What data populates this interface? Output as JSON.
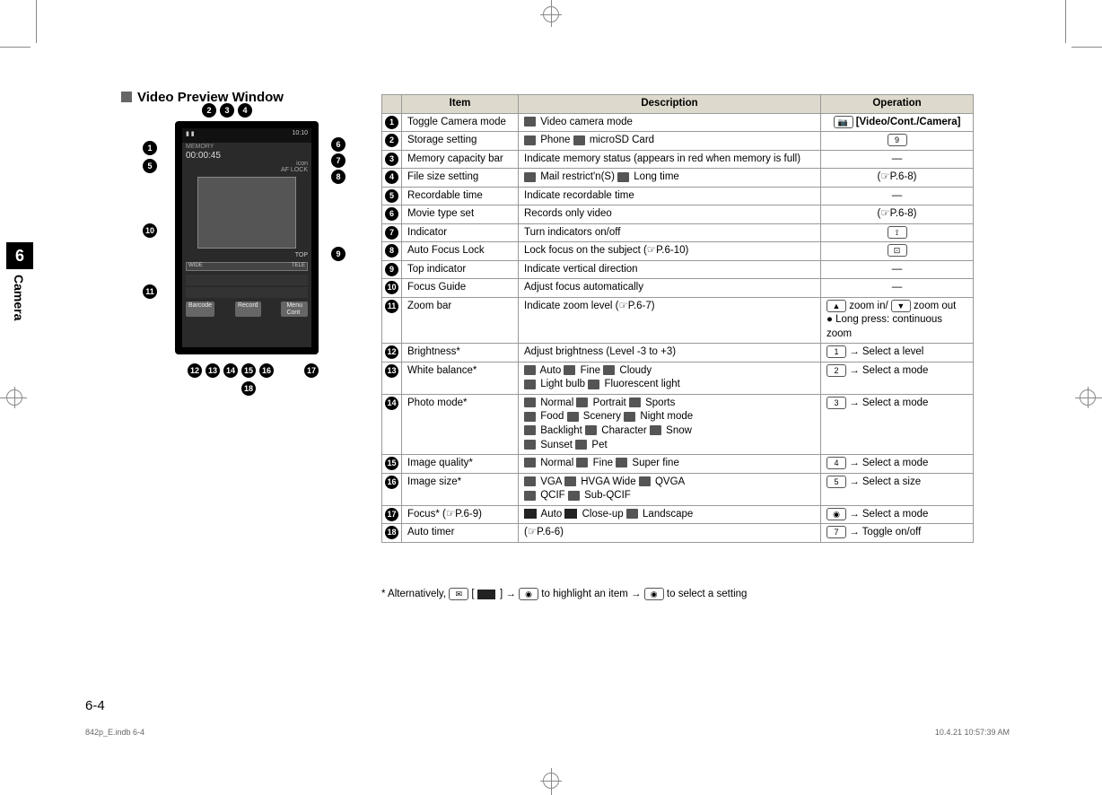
{
  "chapter": {
    "num": "6",
    "name": "Camera"
  },
  "section_title": "Video Preview Window",
  "page_number": "6-4",
  "footer": {
    "left": "842p_E.indb   6-4",
    "right": "10.4.21   10:57:39 AM"
  },
  "screen": {
    "topbar_left": "▮ ▮",
    "topbar_right": "10:10",
    "memory": "MEMORY",
    "timer": "00:00:45",
    "icon_text": "icon",
    "aflock": "AF LOCK",
    "top_text": "TOP",
    "zoom_wide": "WIDE",
    "zoom_tele": "TELE",
    "soft_left": "Barcode",
    "soft_mid": "Record",
    "soft_menu": "Menu",
    "soft_cont": "Cont"
  },
  "callouts": [
    "1",
    "2",
    "3",
    "4",
    "5",
    "6",
    "7",
    "8",
    "9",
    "10",
    "11",
    "12",
    "13",
    "14",
    "15",
    "16",
    "17",
    "18"
  ],
  "table": {
    "headers": {
      "num": "",
      "item": "Item",
      "desc": "Description",
      "op": "Operation"
    },
    "rows": [
      {
        "n": "1",
        "item": "Toggle Camera mode",
        "desc": "[icn] Video camera mode",
        "op": "[key-cam] [Video/Cont./Camera]",
        "op_bold": true
      },
      {
        "n": "2",
        "item": "Storage setting",
        "desc": "[icn] Phone  [icn] microSD Card",
        "op": "[key-9]"
      },
      {
        "n": "3",
        "item": "Memory capacity bar",
        "desc": "Indicate memory status (appears in red when memory is full)",
        "op": "—",
        "dash": true
      },
      {
        "n": "4",
        "item": "File size setting",
        "desc": "[icn] Mail restrict'n(S) [icn] Long time",
        "op": "(☞P.6-8)"
      },
      {
        "n": "5",
        "item": "Recordable time",
        "desc": "Indicate recordable time",
        "op": "—",
        "dash": true
      },
      {
        "n": "6",
        "item": "Movie type set",
        "desc": "Records only video",
        "op": "(☞P.6-8)"
      },
      {
        "n": "7",
        "item": "Indicator",
        "desc": "Turn indicators on/off",
        "op": "[key-sym]"
      },
      {
        "n": "8",
        "item": "Auto Focus Lock",
        "desc": "Lock focus on the subject (☞P.6-10)",
        "op": "[key-box]"
      },
      {
        "n": "9",
        "item": "Top indicator",
        "desc": "Indicate vertical direction",
        "op": "—",
        "dash": true
      },
      {
        "n": "10",
        "item": "Focus Guide",
        "desc": "Adjust focus automatically",
        "op": "—",
        "dash": true
      },
      {
        "n": "11",
        "item": "Zoom bar",
        "desc": "Indicate zoom level (☞P.6-7)",
        "op": "[key-up] zoom in/ [key-down] zoom out\n● Long press: continuous zoom"
      },
      {
        "n": "12",
        "item": "Brightness*",
        "desc": "Adjust brightness (Level -3 to +3)",
        "op": "[key-1] → Select a level"
      },
      {
        "n": "13",
        "item": "White balance*",
        "desc": "[icn] Auto  [icn] Fine  [icn] Cloudy\n[icn] Light bulb  [icn] Fluorescent light",
        "op": "[key-2] → Select a mode"
      },
      {
        "n": "14",
        "item": "Photo mode*",
        "desc": "[icn] Normal  [icn] Portrait  [icn] Sports\n[icn] Food  [icn] Scenery  [icn] Night mode\n[icn] Backlight  [icn] Character  [icn] Snow\n[icn] Sunset  [icn] Pet",
        "op": "[key-3] → Select a mode"
      },
      {
        "n": "15",
        "item": "Image quality*",
        "desc": "[icn] Normal  [icn] Fine  [icn] Super fine",
        "op": "[key-4] → Select a mode"
      },
      {
        "n": "16",
        "item": "Image size*",
        "desc": "[icn] VGA  [icn] HVGA Wide  [icn] QVGA\n[icn] QCIF  [icn] Sub-QCIF",
        "op": "[key-5] → Select a size"
      },
      {
        "n": "17",
        "item": "Focus* (☞P.6-9)",
        "desc": "[blk] Auto  [blk] Close-up  [icn] Landscape",
        "op": "[key-nav] → Select a mode"
      },
      {
        "n": "18",
        "item": "Auto timer",
        "desc": "(☞P.6-6)",
        "op": "[key-7] → Toggle on/off"
      }
    ]
  },
  "footnote": "* Alternatively, [key-mail] [ [blk-cam] ] → [key-nav] to highlight an item → [key-ok] to select a setting",
  "keycaps": {
    "key-1": "1",
    "key-2": "2",
    "key-3": "3",
    "key-4": "4",
    "key-5": "5",
    "key-7": "7",
    "key-9": "9",
    "key-cam": "📷",
    "key-sym": "⟟",
    "key-box": "⊡",
    "key-up": "▲",
    "key-down": "▼",
    "key-nav": "◉",
    "key-mail": "✉",
    "key-ok": "◉",
    "blk-cam": "■"
  }
}
